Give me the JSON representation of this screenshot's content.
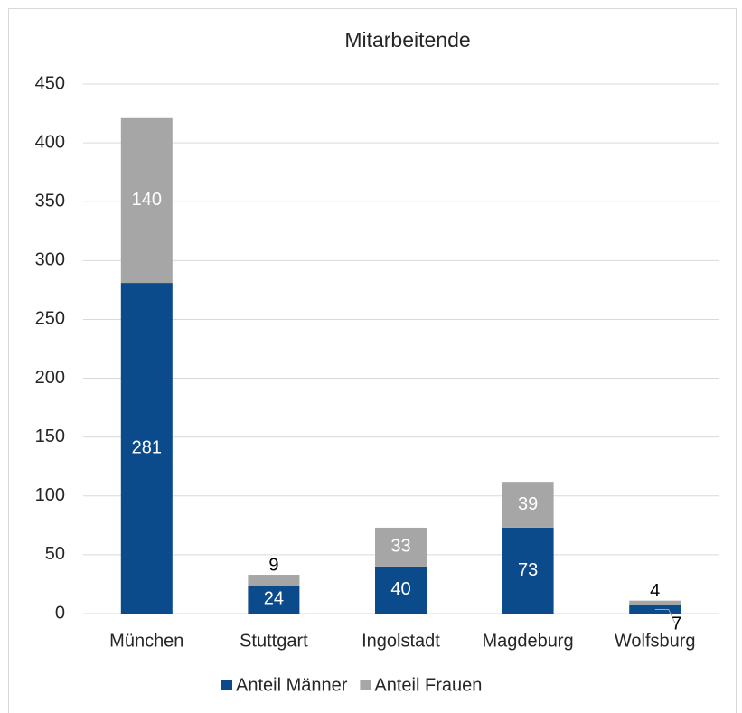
{
  "chart_data": {
    "type": "stacked_bar",
    "title": "Mitarbeitende",
    "categories": [
      "München",
      "Stuttgart",
      "Ingolstadt",
      "Magdeburg",
      "Wolfsburg"
    ],
    "series": [
      {
        "name": "Anteil Männer",
        "color": "#0b4a8b",
        "values": [
          281,
          24,
          40,
          73,
          7
        ]
      },
      {
        "name": "Anteil Frauen",
        "color": "#a6a6a6",
        "values": [
          140,
          9,
          33,
          39,
          4
        ]
      }
    ],
    "ylim": [
      0,
      450
    ],
    "yticks": [
      0,
      50,
      100,
      150,
      200,
      250,
      300,
      350,
      400,
      450
    ],
    "grid": true,
    "legend": "bottom"
  }
}
